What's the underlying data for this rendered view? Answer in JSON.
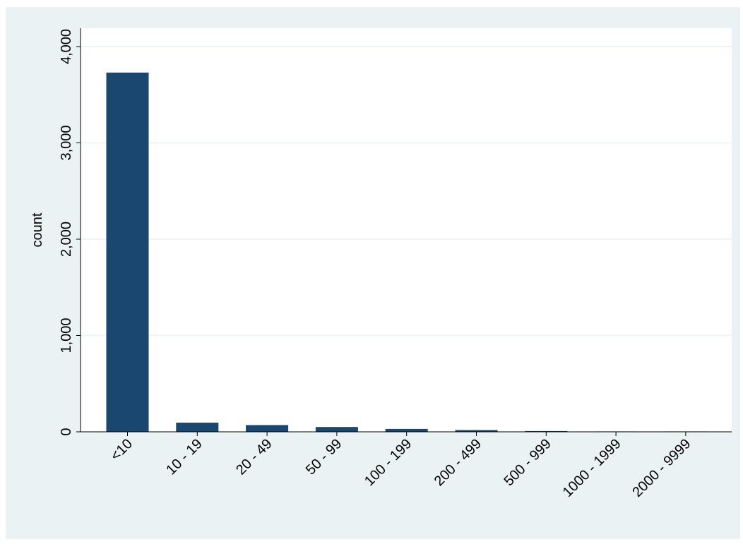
{
  "chart_data": {
    "type": "bar",
    "categories": [
      "<10",
      "10 - 19",
      "20 - 49",
      "50 - 99",
      "100 - 199",
      "200 - 499",
      "500 - 999",
      "1000 - 1999",
      "2000 - 9999"
    ],
    "values": [
      3730,
      95,
      70,
      50,
      30,
      18,
      8,
      4,
      4
    ],
    "title": "",
    "xlabel": "",
    "ylabel": "count",
    "ylim": [
      0,
      4000
    ],
    "yticks": [
      0,
      1000,
      2000,
      3000,
      4000
    ],
    "ytick_labels": [
      "0",
      "1,000",
      "2,000",
      "3,000",
      "4,000"
    ],
    "grid": "horizontal",
    "legend": "none",
    "colors": {
      "bar": "#1a476f",
      "outer_background": "#eaf2f3",
      "plot_background": "#ffffff",
      "gridline": "#eaf2f3"
    }
  }
}
